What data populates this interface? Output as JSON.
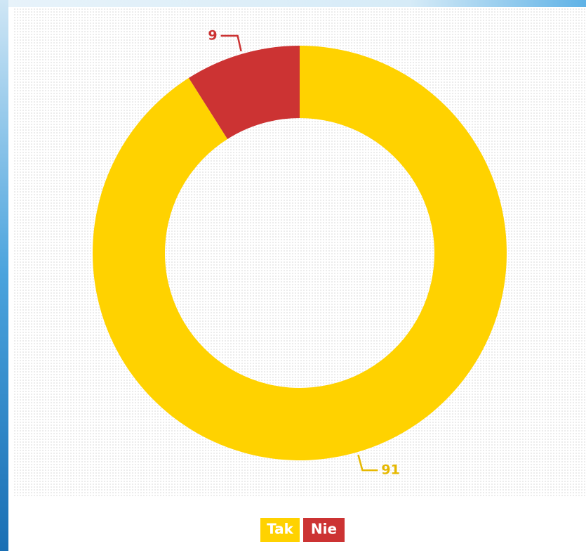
{
  "chart_data": {
    "type": "donut",
    "categories": [
      "Tak",
      "Nie"
    ],
    "values": [
      91,
      9
    ],
    "colors": [
      "#ffd200",
      "#cc3333"
    ]
  }
}
